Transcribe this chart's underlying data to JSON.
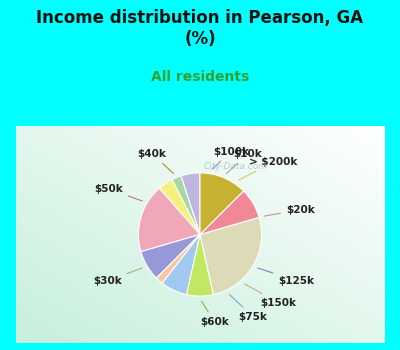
{
  "title": "Income distribution in Pearson, GA\n(%)",
  "subtitle": "All residents",
  "background_color": "#00FFFF",
  "labels": [
    "$100k",
    "$10k",
    "> $200k",
    "$20k",
    "$125k",
    "$150k",
    "$75k",
    "$60k",
    "$30k",
    "$50k",
    "$40k"
  ],
  "sizes": [
    5,
    2.5,
    4,
    18,
    8,
    2,
    7,
    7,
    26,
    8,
    12.5
  ],
  "colors": [
    "#c0b4e0",
    "#a8d8a0",
    "#f5f080",
    "#f0a8b8",
    "#9898d8",
    "#f5c8a0",
    "#a0c8f0",
    "#c0e860",
    "#dddab8",
    "#f08898",
    "#c8b030"
  ],
  "startangle": 90,
  "chart_bg": "#e4f5e0",
  "chart_bg_corner": "#ffffff"
}
